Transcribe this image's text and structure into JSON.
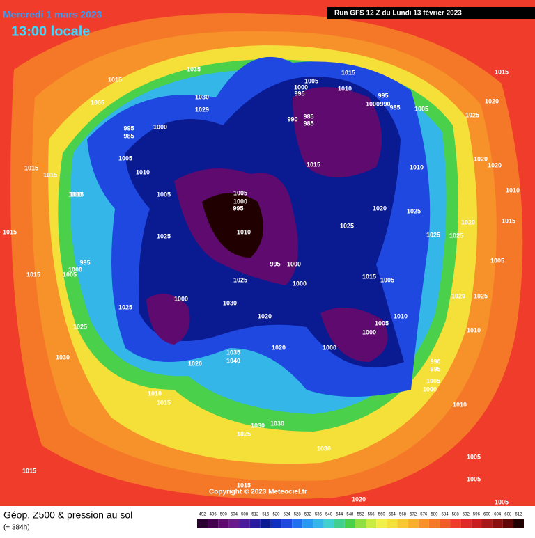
{
  "header": {
    "date": "Mercredi 1 mars 2023",
    "time": "13:00 locale",
    "run": "Run GFS 12 Z du Lundi 13 février 2023"
  },
  "copyright": "Copyright © 2023 Meteociel.fr",
  "caption": {
    "title": "Géop. Z500 & pression au sol",
    "lead": "(+ 384h)"
  },
  "pressure_labels": [
    1035,
    1015,
    1030,
    1029,
    1005,
    995,
    985,
    1000,
    1005,
    1010,
    1015,
    1015,
    1005,
    1015,
    1025,
    1005,
    1000,
    995,
    1010,
    995,
    1000,
    1025,
    1000,
    1000,
    1030,
    1025,
    1025,
    1030,
    1020,
    1020,
    1035,
    1040,
    1020,
    1000,
    1000,
    1005,
    1010,
    1015,
    1005,
    1025,
    1020,
    1015,
    1010,
    1025,
    1025,
    1025,
    1020,
    1015,
    1005,
    1000,
    995,
    1010,
    995,
    1000,
    990,
    985,
    1005,
    990,
    985,
    985,
    1025,
    1015,
    1020,
    1020,
    1020,
    1010,
    1015,
    1005,
    1020,
    1025,
    1010,
    990,
    995,
    1005,
    1000,
    1010,
    1030,
    1030,
    1025,
    1030,
    1015,
    1005,
    1005,
    1005,
    1020,
    1015,
    1010,
    1015,
    1015,
    1005,
    995,
    1000,
    1015,
    1010
  ],
  "legend": {
    "values": [
      492,
      496,
      500,
      504,
      508,
      512,
      516,
      520,
      524,
      528,
      532,
      536,
      540,
      544,
      548,
      552,
      556,
      560,
      564,
      568,
      572,
      576,
      580,
      584,
      588,
      592,
      596,
      600,
      604,
      608,
      612
    ],
    "colors": [
      "#2a0030",
      "#45004f",
      "#5e0a6e",
      "#6a1a8a",
      "#4b1a9a",
      "#2a1a9e",
      "#0a1a90",
      "#1030c0",
      "#1e48e0",
      "#2070f0",
      "#2898f0",
      "#35b6e8",
      "#40d0d0",
      "#40d090",
      "#4ad04a",
      "#8ee040",
      "#c8ec40",
      "#f0f048",
      "#f5e03a",
      "#f8c830",
      "#f8b02a",
      "#f7912a",
      "#f57828",
      "#f25a28",
      "#f03c2a",
      "#e02828",
      "#c81e20",
      "#a81818",
      "#881010",
      "#600808",
      "#200000"
    ]
  }
}
